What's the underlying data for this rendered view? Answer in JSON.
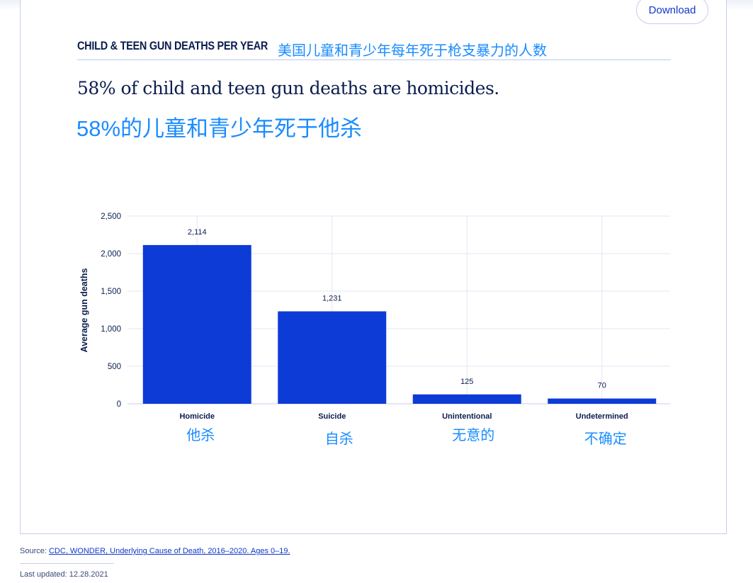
{
  "header": {
    "download_label": "Download",
    "kicker": "CHILD & TEEN GUN DEATHS PER YEAR",
    "kicker_zh": "美国儿童和青少年每年死于枪支暴力的人数",
    "title": "58% of child and teen gun deaths are homicides.",
    "title_zh": "58%的儿童和青少年死于他杀"
  },
  "chart_data": {
    "type": "bar",
    "categories": [
      "Homicide",
      "Suicide",
      "Unintentional",
      "Undetermined"
    ],
    "categories_zh": [
      "他杀",
      "自杀",
      "无意的",
      "不确定"
    ],
    "values": [
      2114,
      1231,
      125,
      70
    ],
    "value_labels": [
      "2,114",
      "1,231",
      "125",
      "70"
    ],
    "ylabel": "Average gun deaths",
    "ylim": [
      0,
      2500
    ],
    "yticks": [
      0,
      500,
      1000,
      1500,
      2000,
      2500
    ],
    "ytick_labels": [
      "0",
      "500",
      "1,000",
      "1,500",
      "2,000",
      "2,500"
    ],
    "grid": true,
    "bar_color": "#0d3bd6"
  },
  "footer": {
    "source_prefix": "Source: ",
    "source_link": "CDC, WONDER, Underlying Cause of Death, 2016–2020. Ages 0–19.",
    "updated": "Last updated: 12.28.2021"
  }
}
